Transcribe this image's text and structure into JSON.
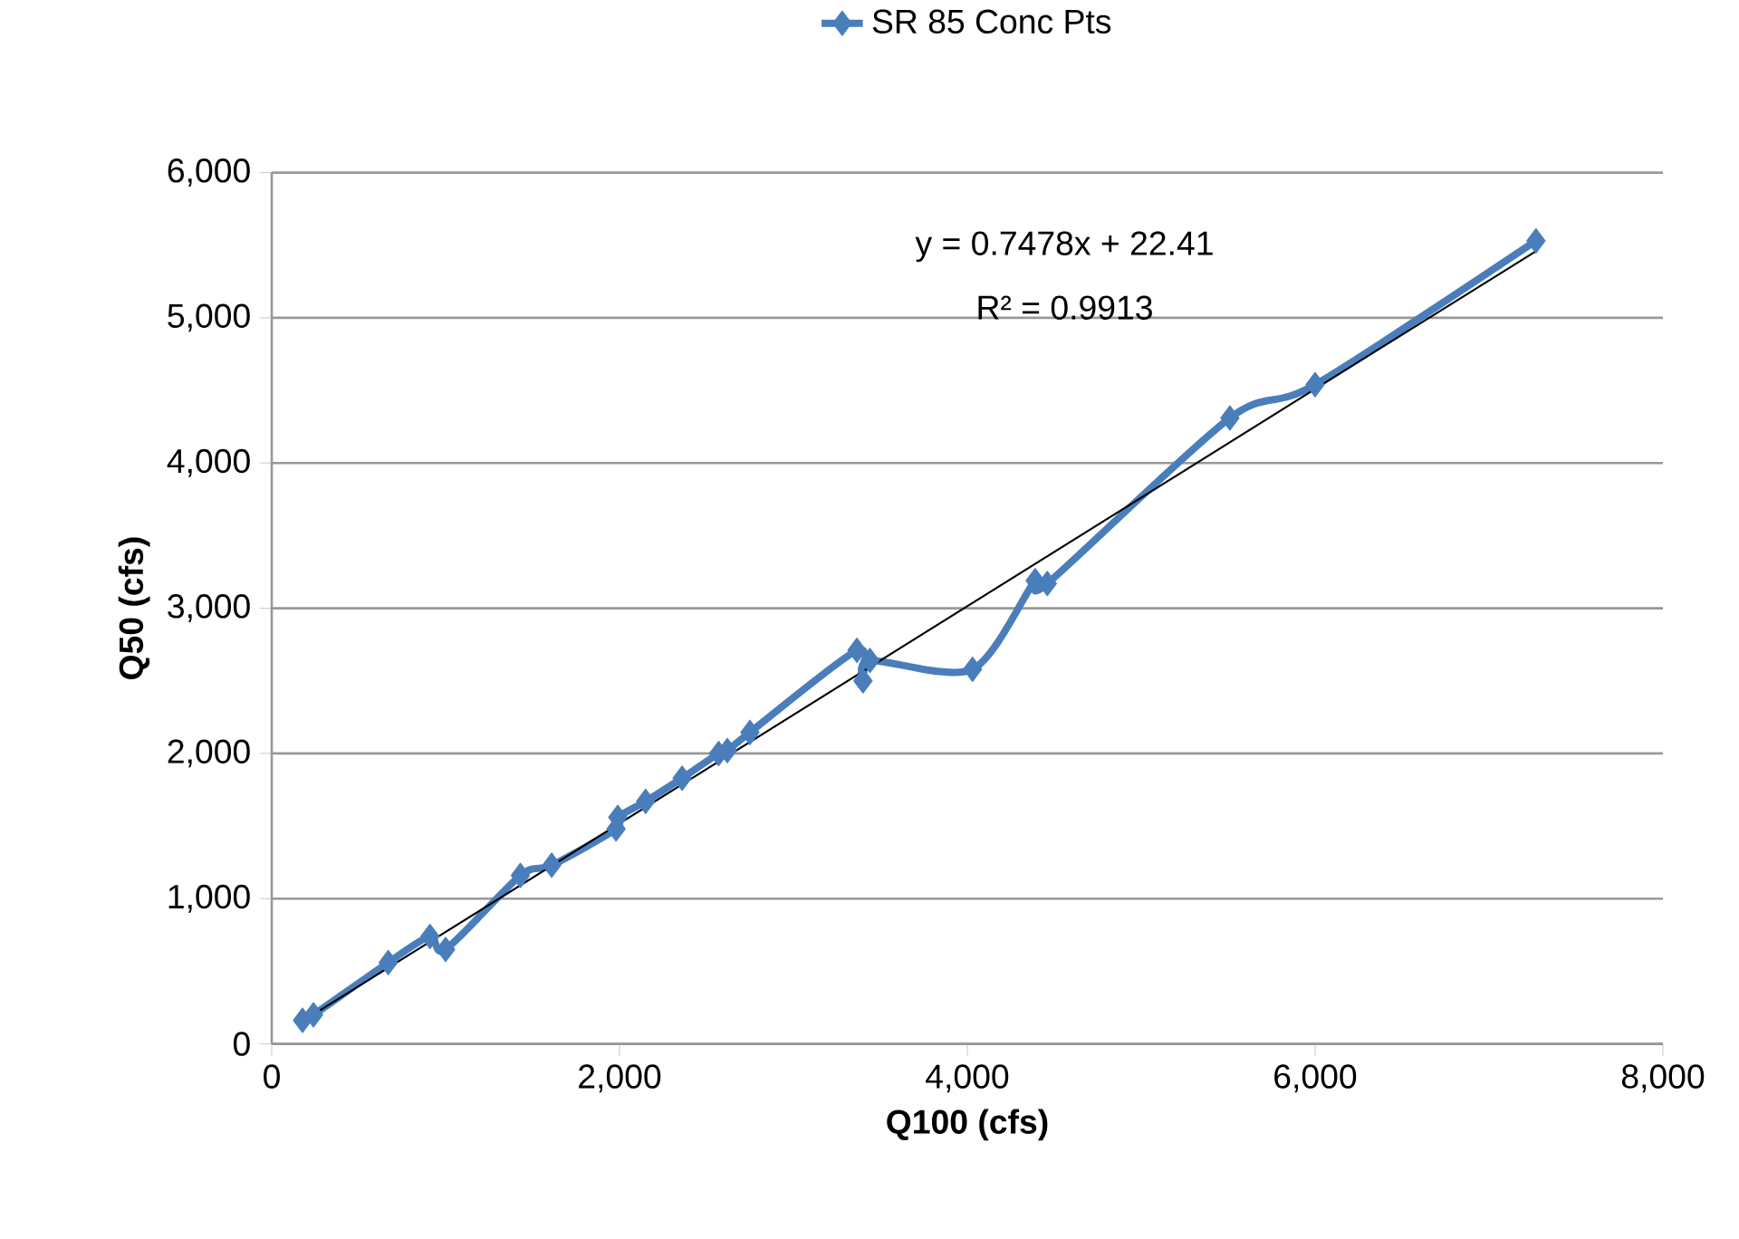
{
  "chart_data": {
    "type": "line",
    "xlabel": "Q100 (cfs)",
    "ylabel": "Q50 (cfs)",
    "xlim": [
      0,
      8000
    ],
    "ylim": [
      0,
      6000
    ],
    "xticks": [
      0,
      {
        "value": 2000,
        "label": "2,000"
      },
      {
        "value": 4000,
        "label": "4,000"
      },
      {
        "value": 6000,
        "label": "6,000"
      },
      {
        "value": 8000,
        "label": "8,000"
      }
    ],
    "yticks": [
      0,
      {
        "value": 1000,
        "label": "1,000"
      },
      {
        "value": 2000,
        "label": "2,000"
      },
      {
        "value": 3000,
        "label": "3,000"
      },
      {
        "value": 4000,
        "label": "4,000"
      },
      {
        "value": 5000,
        "label": "5,000"
      },
      {
        "value": 6000,
        "label": "6,000"
      }
    ],
    "grid": "y",
    "legend": "top",
    "marker": "diamond",
    "line_style": "solid",
    "annotations": [
      "y = 0.7478x + 22.41",
      "R² = 0.9913"
    ],
    "series": [
      {
        "name": "SR 85 Conc Pts",
        "color": "#4a7ebb",
        "x": [
          177,
          240,
          670,
          910,
          1000,
          1430,
          1610,
          1980,
          1990,
          2150,
          2360,
          2570,
          2620,
          2750,
          3365,
          3400,
          3440,
          4030,
          4390,
          4460,
          5510,
          6000,
          7270
        ],
        "values": [
          162,
          200,
          560,
          740,
          650,
          1160,
          1230,
          1480,
          1560,
          1670,
          1830,
          2000,
          2020,
          2145,
          2710,
          2500,
          2640,
          2580,
          3190,
          3170,
          4310,
          4540,
          5530
        ]
      },
      {
        "type": "line",
        "color": "#000000",
        "marker": "none",
        "x": [
          177,
          7270
        ],
        "values": [
          155,
          5459
        ]
      }
    ]
  }
}
